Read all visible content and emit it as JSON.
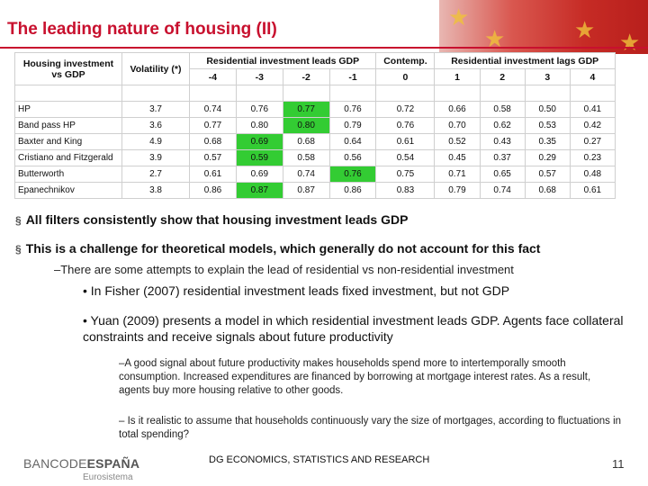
{
  "slide": {
    "title": "The leading nature of housing (II)",
    "footer_center": "DG ECONOMICS, STATISTICS AND RESEARCH",
    "logo_regular": "BANCODE",
    "logo_bold": "ESPAÑA",
    "logo_sub": "Eurosistema",
    "page_number": "11"
  },
  "table": {
    "corner_label_1": "Housing investment",
    "corner_label_2": "vs GDP",
    "volatility_label": "Volatility (*)",
    "group_leads": "Residential investment leads GDP",
    "group_contemp": "Contemp.",
    "group_lags": "Residential investment lags GDP",
    "lags": [
      "-4",
      "-3",
      "-2",
      "-1",
      "0",
      "1",
      "2",
      "3",
      "4"
    ],
    "rows": [
      {
        "name": "HP",
        "vol": "3.7",
        "vals": [
          "0.74",
          "0.76",
          "0.77",
          "0.76",
          "0.72",
          "0.66",
          "0.58",
          "0.50",
          "0.41"
        ],
        "hl": 2
      },
      {
        "name": "Band pass HP",
        "vol": "3.6",
        "vals": [
          "0.77",
          "0.80",
          "0.80",
          "0.79",
          "0.76",
          "0.70",
          "0.62",
          "0.53",
          "0.42"
        ],
        "hl": 2
      },
      {
        "name": "Baxter and King",
        "vol": "4.9",
        "vals": [
          "0.68",
          "0.69",
          "0.68",
          "0.64",
          "0.61",
          "0.52",
          "0.43",
          "0.35",
          "0.27"
        ],
        "hl": 1
      },
      {
        "name": "Cristiano and Fitzgerald",
        "vol": "3.9",
        "vals": [
          "0.57",
          "0.59",
          "0.58",
          "0.56",
          "0.54",
          "0.45",
          "0.37",
          "0.29",
          "0.23"
        ],
        "hl": 1
      },
      {
        "name": "Butterworth",
        "vol": "2.7",
        "vals": [
          "0.61",
          "0.69",
          "0.74",
          "0.76",
          "0.75",
          "0.71",
          "0.65",
          "0.57",
          "0.48"
        ],
        "hl": 3
      },
      {
        "name": "Epanechnikov",
        "vol": "3.8",
        "vals": [
          "0.86",
          "0.87",
          "0.87",
          "0.86",
          "0.83",
          "0.79",
          "0.74",
          "0.68",
          "0.61"
        ],
        "hl": 1
      }
    ]
  },
  "bullets": {
    "b1": "All filters consistently show that housing investment leads GDP",
    "b2": "This is a challenge for theoretical models, which generally do not account for this fact",
    "d1": "–There are some attempts to explain the lead of residential vs non-residential investment",
    "d2": "• In Fisher (2007) residential investment leads fixed investment, but not GDP",
    "d3": "• Yuan (2009) presents a model in which residential investment leads GDP. Agents face collateral constraints and receive signals about future productivity",
    "d4": "–A good signal about future productivity makes households spend more to intertemporally smooth consumption. Increased expenditures are financed by borrowing at mortgage interest rates. As a result, agents buy more housing relative to other goods.",
    "d5": "– Is it realistic to assume that households continuously vary the size of mortgages, according to fluctuations in total spending?"
  },
  "colors": {
    "accent": "#c8102e",
    "highlight": "#33cc33"
  }
}
